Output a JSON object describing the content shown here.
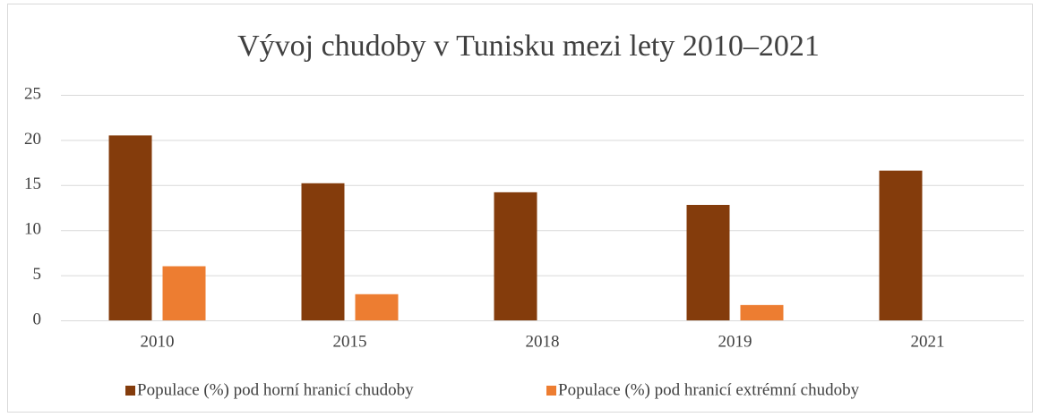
{
  "chart_data": {
    "type": "bar",
    "title": "Vývoj chudoby v Tunisku mezi lety 2010–2021",
    "categories": [
      "2010",
      "2015",
      "2018",
      "2019",
      "2021"
    ],
    "series": [
      {
        "name": "Populace (%) pod horní hranicí chudoby",
        "color": "#843c0c",
        "values": [
          20.5,
          15.2,
          14.2,
          12.8,
          16.6
        ]
      },
      {
        "name": "Populace (%) pod hranicí extrémní chudoby",
        "color": "#ed7d31",
        "values": [
          6.0,
          2.9,
          null,
          1.7,
          null
        ]
      }
    ],
    "ylim": [
      0,
      25
    ],
    "yticks": [
      0,
      5,
      10,
      15,
      20,
      25
    ],
    "grid": true,
    "legend": "bottom"
  }
}
